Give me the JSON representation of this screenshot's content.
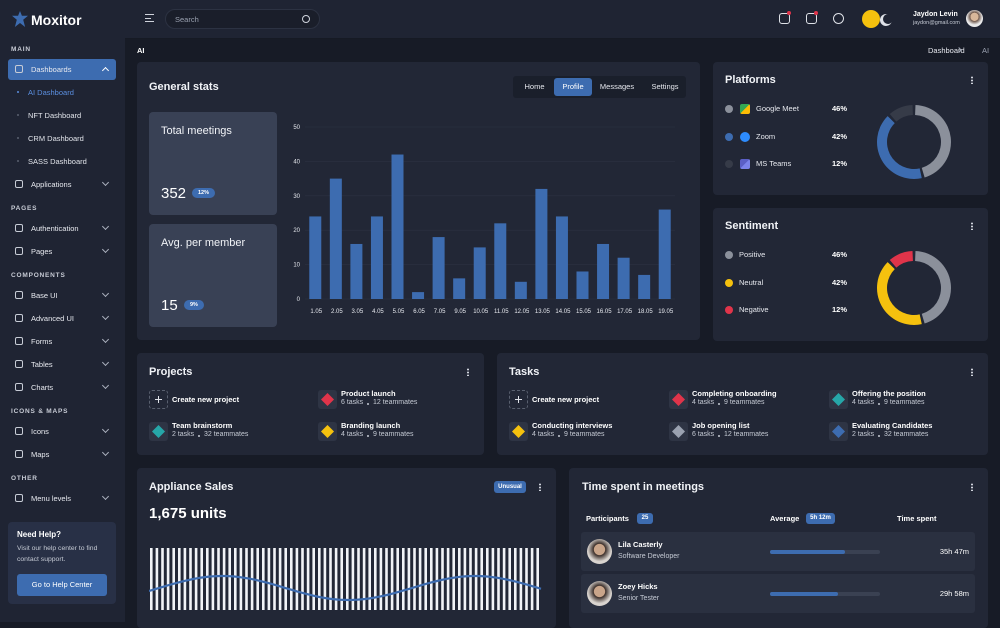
{
  "brand": "Moxitor",
  "search": "Search",
  "user": {
    "name": "Jaydon Levin",
    "email": "jaydon@gmail.com"
  },
  "breadcrumb": {
    "page": "AI",
    "trail": [
      "Dashboard",
      "AI"
    ]
  },
  "sidebar": {
    "active_child": 0,
    "sections": [
      {
        "title": "MAIN",
        "items": [
          {
            "label": "Dashboards",
            "active": true,
            "children": [
              "AI Dashboard",
              "NFT Dashboard",
              "CRM Dashboard",
              "SASS Dashboard"
            ]
          },
          {
            "label": "Applications"
          }
        ]
      },
      {
        "title": "PAGES",
        "items": [
          {
            "label": "Authentication"
          },
          {
            "label": "Pages"
          }
        ]
      },
      {
        "title": "COMPONENTS",
        "items": [
          {
            "label": "Base UI"
          },
          {
            "label": "Advanced UI"
          },
          {
            "label": "Forms"
          },
          {
            "label": "Tables"
          },
          {
            "label": "Charts"
          }
        ]
      },
      {
        "title": "ICONS & MAPS",
        "items": [
          {
            "label": "Icons"
          },
          {
            "label": "Maps"
          }
        ]
      },
      {
        "title": "OTHER",
        "items": [
          {
            "label": "Menu levels"
          }
        ]
      }
    ]
  },
  "help": {
    "title": "Need Help?",
    "text": "Visit our help center to find contact support.",
    "button": "Go to Help Center"
  },
  "general_stats": {
    "title": "General stats",
    "tabs": [
      "Home",
      "Profile",
      "Messages",
      "Settings"
    ],
    "active_tab": 1,
    "stats": [
      {
        "label": "Total meetings",
        "value": 352,
        "change": "12%"
      },
      {
        "label": "Avg. per member",
        "value": 15,
        "change": "9%"
      }
    ]
  },
  "chart_data": [
    {
      "type": "bar",
      "categories": [
        "1.05",
        "2.05",
        "3.05",
        "4.05",
        "5.05",
        "6.05",
        "7.05",
        "9.05",
        "10.05",
        "11.05",
        "12.05",
        "13.05",
        "14.05",
        "15.05",
        "16.05",
        "17.05",
        "18.05",
        "19.05"
      ],
      "values": [
        24,
        35,
        16,
        24,
        42,
        2,
        18,
        6,
        15,
        22,
        5,
        32,
        24,
        8,
        16,
        12,
        7,
        26
      ],
      "color": "#3d6cb0",
      "ylim": [
        0,
        50
      ],
      "yticks": [
        0,
        10,
        20,
        30,
        40,
        50
      ],
      "grid": true
    },
    {
      "type": "pie",
      "donut": true,
      "title": "Platforms",
      "categories": [
        "Google Meet",
        "Zoom",
        "MS Teams"
      ],
      "values": [
        46,
        42,
        12
      ],
      "value_labels": [
        "46%",
        "42%",
        "12%"
      ],
      "colors": [
        "#8b909b",
        "#3d6cb0",
        "#363b48"
      ]
    },
    {
      "type": "pie",
      "donut": true,
      "title": "Sentiment",
      "categories": [
        "Positive",
        "Neutral",
        "Negative"
      ],
      "values": [
        46,
        42,
        12
      ],
      "value_labels": [
        "46%",
        "42%",
        "12%"
      ],
      "colors": [
        "#8b909b",
        "#f5c10e",
        "#e0344a"
      ]
    }
  ],
  "projects": {
    "title": "Projects",
    "items": [
      {
        "title": "Create new project"
      },
      {
        "title": "Product launch",
        "tasks": "6 tasks",
        "teammates": "12 teammates"
      },
      {
        "title": "Team brainstorm",
        "tasks": "2 tasks",
        "teammates": "32 teammates"
      },
      {
        "title": "Branding launch",
        "tasks": "4 tasks",
        "teammates": "9 teammates"
      }
    ]
  },
  "tasks": {
    "title": "Tasks",
    "items": [
      {
        "title": "Create new project"
      },
      {
        "title": "Completing onboarding",
        "tasks": "4 tasks",
        "teammates": "9 teammates"
      },
      {
        "title": "Offering the position",
        "tasks": "4 tasks",
        "teammates": "9 teammates"
      },
      {
        "title": "Conducting interviews",
        "tasks": "4 tasks",
        "teammates": "9 teammates"
      },
      {
        "title": "Job opening list",
        "tasks": "6 tasks",
        "teammates": "12 teammates"
      },
      {
        "title": "Evaluating Candidates",
        "tasks": "2 tasks",
        "teammates": "32 teammates"
      }
    ]
  },
  "appliance": {
    "title": "Appliance Sales",
    "badge": "Unusual",
    "total": "1,675 units"
  },
  "meetings": {
    "title": "Time spent in meetings",
    "columns": [
      "Participants",
      "Average",
      "Time spent"
    ],
    "participants_count": 25,
    "average": "5h 12m",
    "rows": [
      {
        "name": "Lila Casterly",
        "role": "Software Developer",
        "share": 68,
        "time": "35h 47m"
      },
      {
        "name": "Zoey Hicks",
        "role": "Senior Tester",
        "share": 62,
        "time": "29h 58m"
      }
    ]
  }
}
